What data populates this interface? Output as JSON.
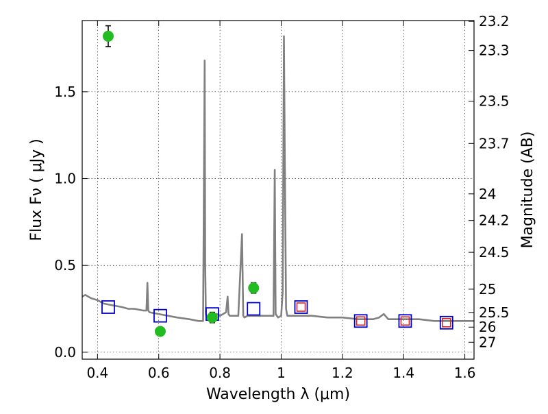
{
  "chart_data": {
    "type": "scatter",
    "xlabel": "Wavelength  λ (μm)",
    "ylabel": "Flux  Fν  ( μJy )",
    "y2label": "Magnitude (AB)",
    "xlim": [
      0.35,
      1.63
    ],
    "ylim": [
      -0.04,
      1.91
    ],
    "grid": true,
    "x_ticks": [
      0.4,
      0.6,
      0.8,
      1.0,
      1.2,
      1.4,
      1.6
    ],
    "x_tick_labels": [
      "0.4",
      "0.6",
      "0.8",
      "1",
      "1.2",
      "1.4",
      "1.6"
    ],
    "y_ticks": [
      0.0,
      0.5,
      1.0,
      1.5
    ],
    "y_tick_labels": [
      "0.0",
      "0.5",
      "1.0",
      "1.5"
    ],
    "magnitude_ticks": [
      "23.2",
      "23.3",
      "23.5",
      "23.7",
      "24",
      "24.2",
      "24.5",
      "25",
      "25.5",
      "26",
      "27"
    ],
    "colors": {
      "spectrum": "#808080",
      "observed": "#22bb22",
      "model_box": "#0000cc",
      "model_inner": "#dd2222"
    },
    "series": [
      {
        "kind": "spectrum",
        "x": [
          0.35,
          0.36,
          0.38,
          0.4,
          0.42,
          0.45,
          0.48,
          0.5,
          0.52,
          0.55,
          0.56,
          0.563,
          0.566,
          0.57,
          0.6,
          0.63,
          0.66,
          0.7,
          0.73,
          0.745,
          0.75,
          0.752,
          0.754,
          0.757,
          0.765,
          0.78,
          0.79,
          0.8,
          0.82,
          0.825,
          0.828,
          0.832,
          0.84,
          0.86,
          0.872,
          0.876,
          0.88,
          0.89,
          0.92,
          0.95,
          0.975,
          0.979,
          0.982,
          0.986,
          0.99,
          1.0,
          1.005,
          1.009,
          1.012,
          1.016,
          1.02,
          1.04,
          1.1,
          1.15,
          1.2,
          1.25,
          1.3,
          1.32,
          1.335,
          1.35,
          1.4,
          1.45,
          1.5,
          1.55,
          1.6,
          1.63
        ],
        "y": [
          0.32,
          0.33,
          0.31,
          0.3,
          0.28,
          0.27,
          0.26,
          0.25,
          0.25,
          0.24,
          0.24,
          0.4,
          0.24,
          0.23,
          0.22,
          0.21,
          0.2,
          0.19,
          0.18,
          0.18,
          1.68,
          0.5,
          0.22,
          0.2,
          0.19,
          0.21,
          0.22,
          0.21,
          0.23,
          0.32,
          0.22,
          0.21,
          0.21,
          0.21,
          0.68,
          0.21,
          0.2,
          0.21,
          0.21,
          0.21,
          0.21,
          1.05,
          0.22,
          0.21,
          0.2,
          0.21,
          0.35,
          1.82,
          1.1,
          0.25,
          0.21,
          0.21,
          0.21,
          0.2,
          0.2,
          0.19,
          0.19,
          0.2,
          0.22,
          0.19,
          0.19,
          0.19,
          0.18,
          0.18,
          0.18,
          0.18
        ]
      },
      {
        "kind": "observed",
        "name": "",
        "x": [
          0.435,
          0.605,
          0.775,
          0.91
        ],
        "y": [
          1.82,
          0.12,
          0.2,
          0.37
        ],
        "yerr": [
          0.06,
          0.02,
          0.03,
          0.03
        ]
      },
      {
        "kind": "model",
        "name": "",
        "x": [
          0.435,
          0.605,
          0.775,
          0.91,
          1.065,
          1.26,
          1.405,
          1.54
        ],
        "y": [
          0.26,
          0.21,
          0.22,
          0.25,
          0.26,
          0.18,
          0.18,
          0.17
        ],
        "inner": [
          false,
          false,
          false,
          false,
          true,
          true,
          true,
          true
        ]
      }
    ]
  }
}
